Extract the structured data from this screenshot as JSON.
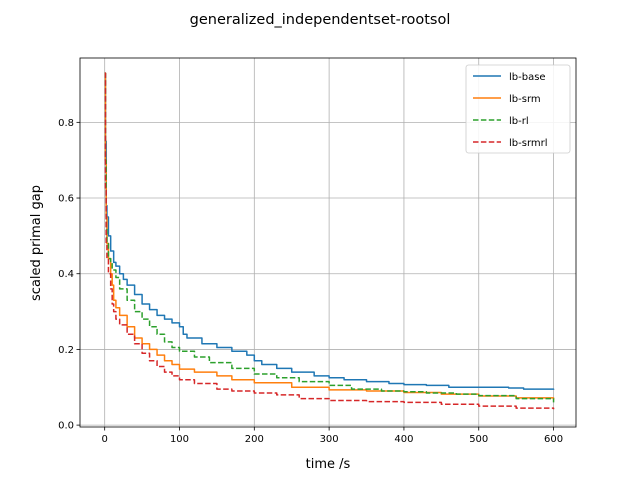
{
  "chart_data": {
    "type": "line",
    "title": "generalized_independentset-rootsol",
    "xlabel": "time /s",
    "ylabel": "scaled primal gap",
    "xlim": [
      -33,
      630
    ],
    "ylim": [
      -0.005,
      0.97
    ],
    "xticks": [
      0,
      100,
      200,
      300,
      400,
      500,
      600
    ],
    "yticks": [
      0.0,
      0.2,
      0.4,
      0.6,
      0.8
    ],
    "grid": true,
    "legend_position": "top-right",
    "series": [
      {
        "name": "lb-base",
        "color": "#1f77b4",
        "dash": "solid",
        "x": [
          0,
          1,
          2,
          3,
          5,
          8,
          12,
          15,
          20,
          25,
          30,
          40,
          50,
          60,
          70,
          80,
          90,
          100,
          105,
          110,
          130,
          150,
          170,
          190,
          200,
          210,
          230,
          250,
          280,
          300,
          320,
          350,
          380,
          400,
          430,
          460,
          470,
          500,
          540,
          560,
          600
        ],
        "y": [
          0.93,
          0.75,
          0.58,
          0.55,
          0.5,
          0.46,
          0.43,
          0.42,
          0.4,
          0.385,
          0.37,
          0.345,
          0.32,
          0.305,
          0.29,
          0.28,
          0.27,
          0.26,
          0.24,
          0.23,
          0.215,
          0.205,
          0.195,
          0.185,
          0.17,
          0.16,
          0.15,
          0.14,
          0.13,
          0.125,
          0.12,
          0.115,
          0.11,
          0.107,
          0.105,
          0.1,
          0.1,
          0.1,
          0.098,
          0.095,
          0.093
        ]
      },
      {
        "name": "lb-srm",
        "color": "#ff7f0e",
        "dash": "solid",
        "x": [
          0,
          1,
          2,
          3,
          5,
          8,
          10,
          12,
          15,
          20,
          30,
          40,
          50,
          60,
          70,
          80,
          90,
          100,
          120,
          150,
          170,
          200,
          250,
          300,
          350,
          400,
          450,
          500,
          550,
          600
        ],
        "y": [
          0.93,
          0.7,
          0.55,
          0.48,
          0.44,
          0.4,
          0.37,
          0.33,
          0.31,
          0.29,
          0.26,
          0.23,
          0.215,
          0.2,
          0.185,
          0.17,
          0.16,
          0.148,
          0.14,
          0.13,
          0.12,
          0.112,
          0.1,
          0.093,
          0.09,
          0.086,
          0.082,
          0.077,
          0.072,
          0.068
        ]
      },
      {
        "name": "lb-rl",
        "color": "#2ca02c",
        "dash": "dashed",
        "x": [
          0,
          1,
          2,
          3,
          5,
          8,
          10,
          15,
          20,
          30,
          40,
          50,
          60,
          70,
          80,
          90,
          100,
          120,
          140,
          170,
          200,
          230,
          260,
          300,
          330,
          370,
          400,
          430,
          470,
          500,
          550,
          600
        ],
        "y": [
          0.93,
          0.7,
          0.52,
          0.48,
          0.44,
          0.43,
          0.41,
          0.39,
          0.36,
          0.33,
          0.3,
          0.28,
          0.26,
          0.24,
          0.22,
          0.205,
          0.195,
          0.18,
          0.165,
          0.15,
          0.135,
          0.125,
          0.115,
          0.105,
          0.095,
          0.09,
          0.088,
          0.085,
          0.082,
          0.078,
          0.07,
          0.06
        ]
      },
      {
        "name": "lb-srmrl",
        "color": "#d62728",
        "dash": "dashed",
        "x": [
          0,
          1,
          2,
          3,
          5,
          8,
          10,
          12,
          15,
          20,
          30,
          40,
          50,
          60,
          70,
          80,
          90,
          100,
          120,
          150,
          170,
          200,
          230,
          260,
          300,
          350,
          400,
          450,
          500,
          550,
          600
        ],
        "y": [
          0.93,
          0.62,
          0.48,
          0.44,
          0.4,
          0.36,
          0.32,
          0.3,
          0.28,
          0.265,
          0.24,
          0.215,
          0.19,
          0.17,
          0.155,
          0.14,
          0.13,
          0.12,
          0.11,
          0.095,
          0.09,
          0.085,
          0.08,
          0.07,
          0.065,
          0.062,
          0.06,
          0.055,
          0.05,
          0.045,
          0.042
        ]
      }
    ]
  }
}
